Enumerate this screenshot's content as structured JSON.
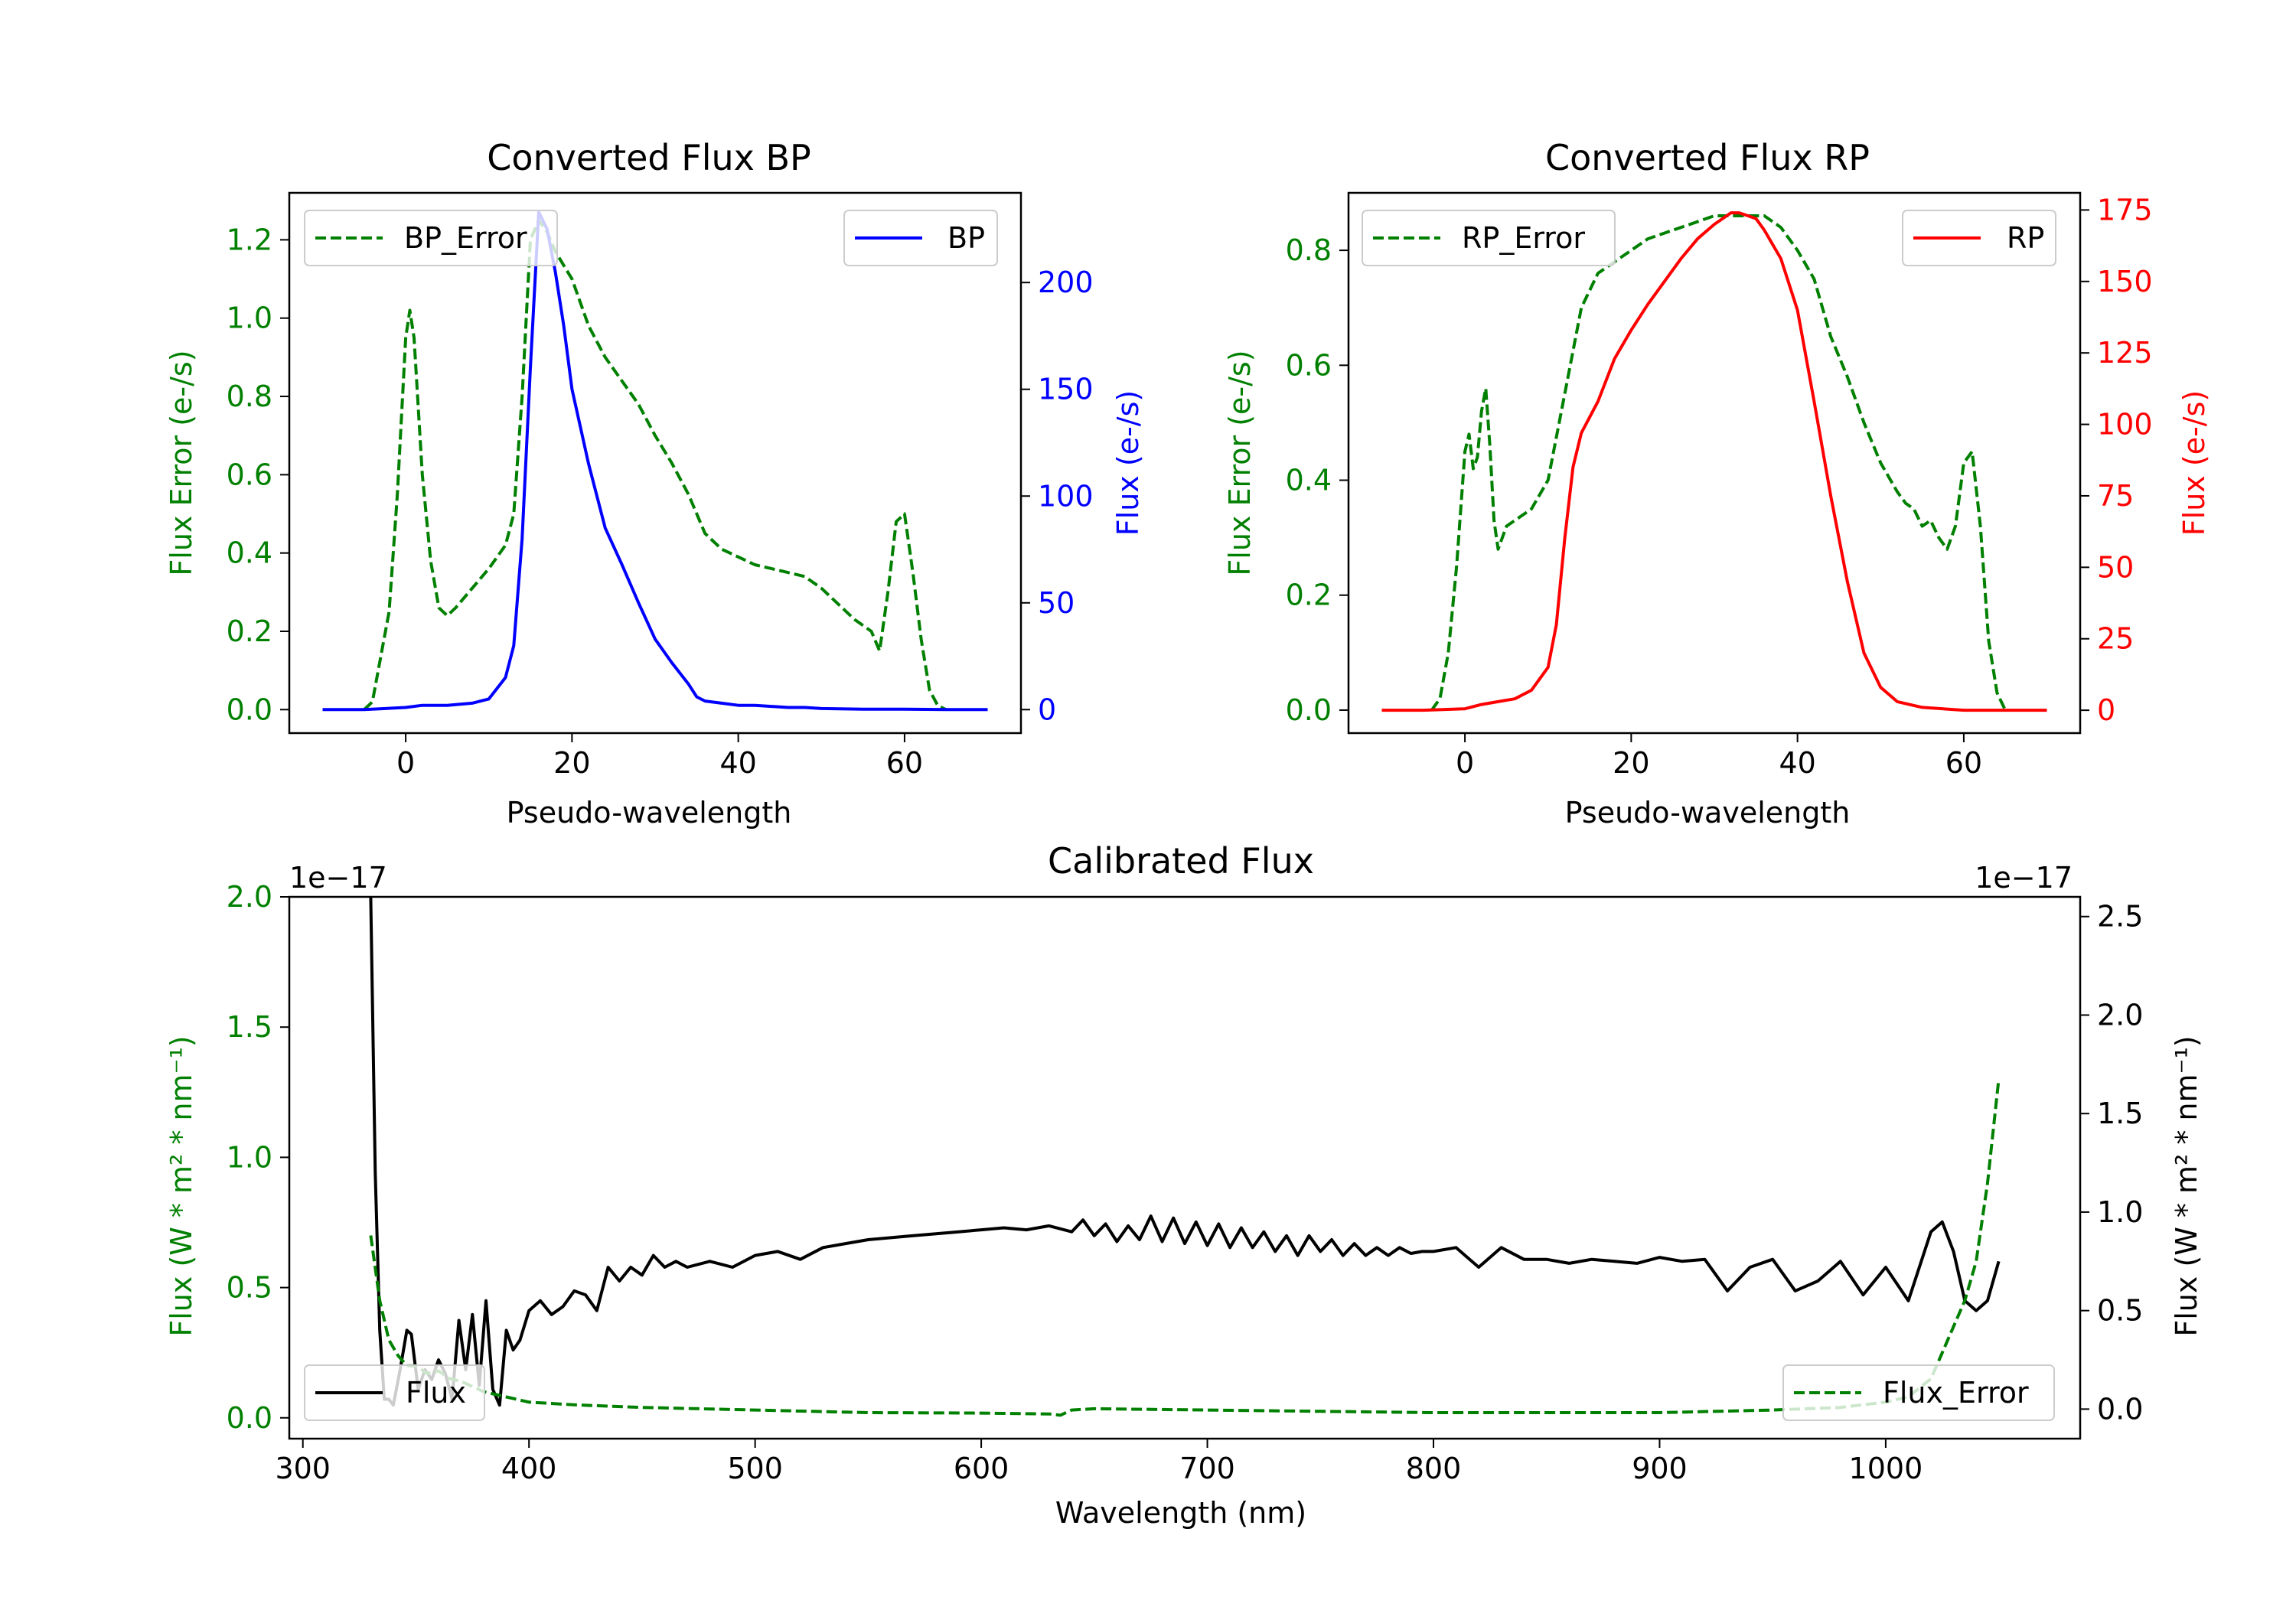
{
  "colors": {
    "green": "#008000",
    "blue": "#0000ff",
    "red": "#ff0000",
    "black": "#000000"
  },
  "chart_data": [
    {
      "id": "bp",
      "type": "line",
      "title": "Converted Flux BP",
      "xlabel": "Pseudo-wavelength",
      "xlim": [
        -14,
        74
      ],
      "xticks": [
        0,
        20,
        40,
        60
      ],
      "left_axis": {
        "label": "Flux Error (e-/s)",
        "color": "#008000",
        "ylim": [
          -0.06,
          1.32
        ],
        "ticks": [
          "0.0",
          "0.2",
          "0.4",
          "0.6",
          "0.8",
          "1.0",
          "1.2"
        ]
      },
      "right_axis": {
        "label": "Flux (e-/s)",
        "color": "#0000ff",
        "ylim": [
          -11,
          242
        ],
        "ticks": [
          "0",
          "50",
          "100",
          "150",
          "200"
        ]
      },
      "series": [
        {
          "name": "BP_Error",
          "axis": "left",
          "style": "dashed",
          "color": "#008000",
          "x": [
            -5,
            -4,
            -2,
            -1,
            0,
            0.5,
            1,
            2,
            3,
            4,
            5,
            6,
            8,
            10,
            12,
            13,
            14,
            15,
            16,
            17,
            18,
            20,
            22,
            24,
            26,
            28,
            30,
            32,
            34,
            36,
            38,
            40,
            42,
            44,
            46,
            48,
            50,
            52,
            54,
            56,
            57,
            58,
            59,
            60,
            61,
            62,
            63,
            64,
            65
          ],
          "values": [
            0,
            0.02,
            0.25,
            0.55,
            0.95,
            1.02,
            0.95,
            0.6,
            0.38,
            0.26,
            0.24,
            0.26,
            0.31,
            0.36,
            0.42,
            0.5,
            0.8,
            1.2,
            1.25,
            1.22,
            1.17,
            1.1,
            0.98,
            0.9,
            0.84,
            0.78,
            0.7,
            0.63,
            0.55,
            0.45,
            0.41,
            0.39,
            0.37,
            0.36,
            0.35,
            0.34,
            0.31,
            0.27,
            0.23,
            0.2,
            0.15,
            0.3,
            0.48,
            0.5,
            0.35,
            0.18,
            0.05,
            0.01,
            0
          ]
        },
        {
          "name": "BP",
          "axis": "right",
          "style": "solid",
          "color": "#0000ff",
          "x": [
            -10,
            -5,
            0,
            2,
            5,
            8,
            10,
            12,
            13,
            14,
            15,
            16,
            17,
            18,
            19,
            20,
            22,
            24,
            26,
            28,
            30,
            32,
            34,
            35,
            36,
            38,
            40,
            42,
            44,
            46,
            48,
            50,
            55,
            60,
            65,
            70
          ],
          "values": [
            0,
            0,
            1,
            2,
            2,
            3,
            5,
            15,
            30,
            80,
            160,
            233,
            225,
            205,
            180,
            150,
            115,
            85,
            68,
            50,
            33,
            22,
            12,
            6,
            4,
            3,
            2,
            2,
            1.5,
            1,
            1,
            0.5,
            0.2,
            0.2,
            0,
            0
          ]
        }
      ],
      "legend": [
        {
          "label": "BP_Error",
          "position": "top-left"
        },
        {
          "label": "BP",
          "position": "top-right"
        }
      ]
    },
    {
      "id": "rp",
      "type": "line",
      "title": "Converted Flux RP",
      "xlabel": "Pseudo-wavelength",
      "xlim": [
        -14,
        74
      ],
      "xticks": [
        0,
        20,
        40,
        60
      ],
      "left_axis": {
        "label": "Flux Error (e-/s)",
        "color": "#008000",
        "ylim": [
          -0.04,
          0.9
        ],
        "ticks": [
          "0.0",
          "0.2",
          "0.4",
          "0.6",
          "0.8"
        ]
      },
      "right_axis": {
        "label": "Flux (e-/s)",
        "color": "#ff0000",
        "ylim": [
          -8,
          181
        ],
        "ticks": [
          "0",
          "25",
          "50",
          "75",
          "100",
          "125",
          "150",
          "175"
        ]
      },
      "series": [
        {
          "name": "RP_Error",
          "axis": "left",
          "style": "dashed",
          "color": "#008000",
          "x": [
            -4,
            -3,
            -2,
            -1,
            0,
            0.5,
            1,
            1.5,
            2,
            2.5,
            3,
            3.5,
            4,
            5,
            6,
            8,
            10,
            12,
            14,
            16,
            18,
            20,
            22,
            24,
            26,
            28,
            30,
            32,
            34,
            36,
            38,
            40,
            42,
            44,
            46,
            48,
            50,
            52,
            53,
            54,
            55,
            56,
            57,
            58,
            59,
            60,
            61,
            62,
            63,
            64,
            65
          ],
          "values": [
            0,
            0.02,
            0.1,
            0.25,
            0.45,
            0.48,
            0.42,
            0.44,
            0.52,
            0.56,
            0.46,
            0.33,
            0.28,
            0.32,
            0.33,
            0.35,
            0.4,
            0.55,
            0.7,
            0.76,
            0.78,
            0.8,
            0.82,
            0.83,
            0.84,
            0.85,
            0.86,
            0.86,
            0.86,
            0.86,
            0.84,
            0.8,
            0.75,
            0.65,
            0.58,
            0.5,
            0.43,
            0.38,
            0.36,
            0.35,
            0.32,
            0.33,
            0.3,
            0.28,
            0.32,
            0.43,
            0.45,
            0.32,
            0.12,
            0.03,
            0
          ]
        },
        {
          "name": "RP",
          "axis": "right",
          "style": "solid",
          "color": "#ff0000",
          "x": [
            -10,
            -5,
            0,
            2,
            4,
            6,
            8,
            10,
            11,
            12,
            13,
            14,
            16,
            18,
            20,
            22,
            24,
            26,
            28,
            30,
            31,
            32,
            33,
            34,
            35,
            36,
            38,
            40,
            42,
            44,
            46,
            48,
            50,
            52,
            55,
            60,
            65,
            70
          ],
          "values": [
            0,
            0,
            0.5,
            2,
            3,
            4,
            7,
            15,
            30,
            60,
            85,
            97,
            108,
            123,
            133,
            142,
            150,
            158,
            165,
            170,
            172,
            174,
            174,
            173,
            172,
            168,
            158,
            140,
            108,
            75,
            45,
            20,
            8,
            3,
            1,
            0,
            0,
            0
          ]
        }
      ],
      "legend": [
        {
          "label": "RP_Error",
          "position": "top-left"
        },
        {
          "label": "RP",
          "position": "top-right"
        }
      ]
    },
    {
      "id": "cal",
      "type": "line",
      "title": "Calibrated Flux",
      "xlabel": "Wavelength (nm)",
      "xlim": [
        294,
        1086
      ],
      "xticks": [
        300,
        400,
        500,
        600,
        700,
        800,
        900,
        1000
      ],
      "left_axis": {
        "label": "Flux (W * m² * nm⁻¹)",
        "color": "#008000",
        "ylim": [
          -0.08,
          2.0
        ],
        "ticks": [
          "0.0",
          "0.5",
          "1.0",
          "1.5",
          "2.0"
        ],
        "offset_text": "1e−17"
      },
      "right_axis": {
        "label": "Flux (W * m² * nm⁻¹)",
        "color": "#000000",
        "ylim": [
          -0.15,
          2.6
        ],
        "ticks": [
          "0.0",
          "0.5",
          "1.0",
          "1.5",
          "2.0",
          "2.5"
        ],
        "offset_text": "1e−17"
      },
      "series": [
        {
          "name": "Flux",
          "axis": "right",
          "style": "solid",
          "color": "#000000",
          "x": [
            330,
            332,
            334,
            336,
            338,
            340,
            343,
            346,
            348,
            351,
            354,
            357,
            360,
            363,
            366,
            369,
            372,
            375,
            378,
            381,
            384,
            387,
            390,
            393,
            396,
            400,
            405,
            410,
            415,
            420,
            425,
            430,
            435,
            440,
            445,
            450,
            455,
            460,
            465,
            470,
            480,
            490,
            500,
            510,
            520,
            530,
            540,
            550,
            560,
            570,
            580,
            590,
            600,
            610,
            620,
            630,
            640,
            645,
            650,
            655,
            660,
            665,
            670,
            675,
            680,
            685,
            690,
            695,
            700,
            705,
            710,
            715,
            720,
            725,
            730,
            735,
            740,
            745,
            750,
            755,
            760,
            765,
            770,
            775,
            780,
            785,
            790,
            795,
            800,
            810,
            820,
            830,
            840,
            850,
            860,
            870,
            880,
            890,
            900,
            910,
            920,
            930,
            940,
            950,
            960,
            970,
            980,
            990,
            1000,
            1010,
            1020,
            1025,
            1030,
            1035,
            1040,
            1045,
            1050
          ],
          "values": [
            2.6,
            1.2,
            0.4,
            0.05,
            0.05,
            0.02,
            0.2,
            0.4,
            0.38,
            0.1,
            0.2,
            0.15,
            0.25,
            0.18,
            0.05,
            0.45,
            0.2,
            0.48,
            0.12,
            0.55,
            0.1,
            0.02,
            0.4,
            0.3,
            0.35,
            0.5,
            0.55,
            0.48,
            0.52,
            0.6,
            0.58,
            0.5,
            0.72,
            0.65,
            0.72,
            0.68,
            0.78,
            0.72,
            0.75,
            0.72,
            0.75,
            0.72,
            0.78,
            0.8,
            0.76,
            0.82,
            0.84,
            0.86,
            0.87,
            0.88,
            0.89,
            0.9,
            0.91,
            0.92,
            0.91,
            0.93,
            0.9,
            0.96,
            0.88,
            0.94,
            0.85,
            0.93,
            0.86,
            0.98,
            0.85,
            0.97,
            0.84,
            0.95,
            0.83,
            0.94,
            0.82,
            0.92,
            0.82,
            0.9,
            0.8,
            0.88,
            0.78,
            0.88,
            0.8,
            0.86,
            0.78,
            0.84,
            0.78,
            0.82,
            0.78,
            0.82,
            0.79,
            0.8,
            0.8,
            0.82,
            0.72,
            0.82,
            0.76,
            0.76,
            0.74,
            0.76,
            0.75,
            0.74,
            0.77,
            0.75,
            0.76,
            0.6,
            0.72,
            0.76,
            0.6,
            0.65,
            0.75,
            0.58,
            0.72,
            0.55,
            0.9,
            0.95,
            0.8,
            0.55,
            0.5,
            0.55,
            0.75
          ]
        },
        {
          "name": "Flux_Error",
          "axis": "left",
          "style": "dashed",
          "color": "#008000",
          "x": [
            330,
            334,
            338,
            342,
            346,
            350,
            355,
            360,
            365,
            370,
            375,
            380,
            385,
            390,
            400,
            420,
            450,
            500,
            550,
            600,
            630,
            635,
            640,
            650,
            700,
            750,
            800,
            850,
            900,
            950,
            980,
            1000,
            1010,
            1020,
            1025,
            1030,
            1035,
            1040,
            1045,
            1050
          ],
          "values": [
            0.7,
            0.45,
            0.3,
            0.24,
            0.2,
            0.2,
            0.17,
            0.18,
            0.15,
            0.14,
            0.12,
            0.1,
            0.09,
            0.08,
            0.06,
            0.05,
            0.04,
            0.03,
            0.02,
            0.018,
            0.015,
            0.01,
            0.03,
            0.035,
            0.03,
            0.025,
            0.02,
            0.02,
            0.02,
            0.03,
            0.04,
            0.06,
            0.08,
            0.15,
            0.25,
            0.35,
            0.45,
            0.6,
            0.9,
            1.3
          ]
        }
      ],
      "legend": [
        {
          "label": "Flux",
          "position": "bottom-left"
        },
        {
          "label": "Flux_Error",
          "position": "bottom-right"
        }
      ]
    }
  ]
}
